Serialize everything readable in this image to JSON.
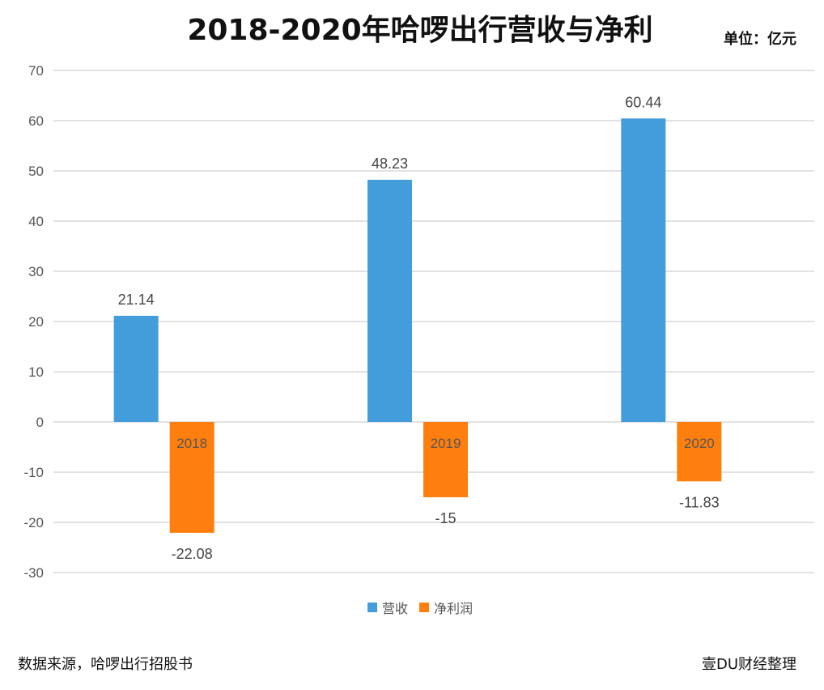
{
  "header": {
    "title": "2018-2020年哈啰出行营收与净利",
    "unit": "单位：亿元"
  },
  "footer": {
    "source": "数据来源，哈啰出行招股书",
    "credit": "壹DU财经整理"
  },
  "colors": {
    "revenue": "#449ddb",
    "net_profit": "#ff7f0e",
    "grid": "#d9d9d9",
    "axis_text": "#555555"
  },
  "chart_data": {
    "type": "bar",
    "title": "2018-2020年哈啰出行营收与净利",
    "categories": [
      "2018",
      "2019",
      "2020"
    ],
    "series": [
      {
        "name": "营收",
        "values": [
          21.14,
          48.23,
          60.44
        ],
        "labels": [
          "21.14",
          "48.23",
          "60.44"
        ]
      },
      {
        "name": "净利润",
        "values": [
          -22.08,
          -15,
          -11.83
        ],
        "labels": [
          "-22.08",
          "-15",
          "-11.83"
        ]
      }
    ],
    "ylim": [
      -30,
      70
    ],
    "yticks": [
      70,
      60,
      50,
      40,
      30,
      20,
      10,
      0,
      -10,
      -20,
      -30
    ],
    "grid": true,
    "legend": "bottom"
  }
}
